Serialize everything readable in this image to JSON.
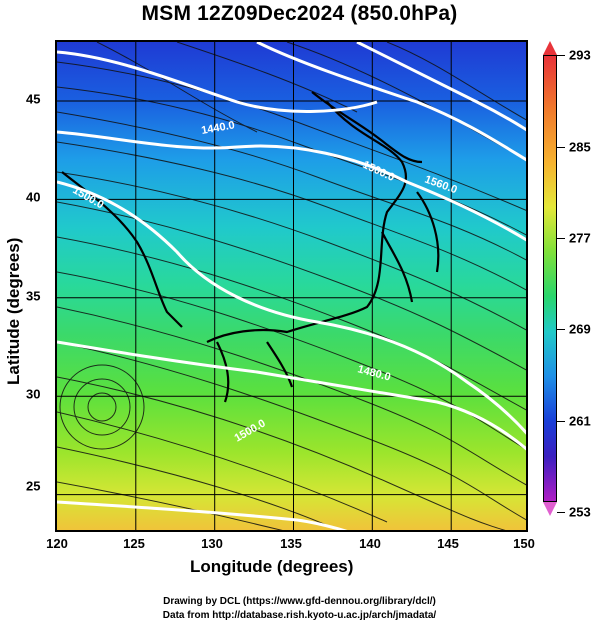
{
  "title": "MSM 12Z09Dec2024 (850.0hPa)",
  "xlabel": "Longitude (degrees)",
  "ylabel": "Latitude  (degrees)",
  "x_ticks": [
    "120",
    "125",
    "130",
    "135",
    "140",
    "145",
    "150"
  ],
  "y_ticks": [
    "45",
    "40",
    "35",
    "30",
    "25"
  ],
  "colorbar": {
    "ticks": [
      "293",
      "285",
      "277",
      "269",
      "261",
      "253"
    ]
  },
  "contour_labels": [
    "1440.0",
    "1500.0",
    "1560.0",
    "1500.0",
    "1480.0",
    "1500.0"
  ],
  "credits": {
    "line1": "Drawing by DCL (https://www.gfd-dennou.org/library/dcl/)",
    "line2": "Data from http://database.rish.kyoto-u.ac.jp/arch/jmadata/"
  },
  "chart_data": {
    "type": "heatmap",
    "title": "MSM 12Z09Dec2024 (850.0hPa)",
    "xlabel": "Longitude (degrees)",
    "ylabel": "Latitude  (degrees)",
    "xlim": [
      120,
      150
    ],
    "ylim": [
      22.5,
      47.5
    ],
    "colorbar_range": [
      253,
      293
    ],
    "colorbar_ticks": [
      293,
      285,
      277,
      269,
      261,
      253
    ],
    "grid": true
  }
}
